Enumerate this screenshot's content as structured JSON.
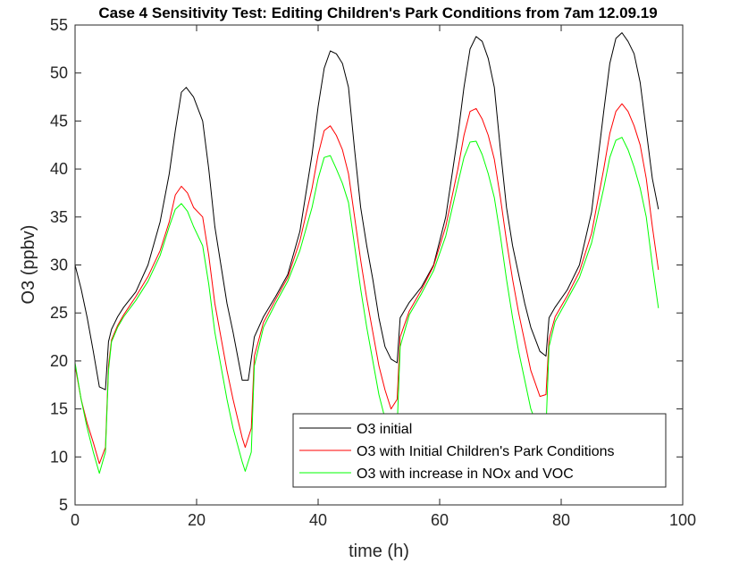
{
  "chart_data": {
    "type": "line",
    "title": "Case 4 Sensitivity Test: Editing Children's Park Conditions from 7am 12.09.19",
    "xlabel": "time (h)",
    "ylabel": "O3 (ppbv)",
    "xlim": [
      0,
      100
    ],
    "ylim": [
      5,
      55
    ],
    "xticks": [
      0,
      20,
      40,
      60,
      80,
      100
    ],
    "yticks": [
      5,
      10,
      15,
      20,
      25,
      30,
      35,
      40,
      45,
      50,
      55
    ],
    "grid": false,
    "legend_position": "bottom-right",
    "series": [
      {
        "name": "O3 initial",
        "color": "#000000",
        "points": [
          [
            0,
            30
          ],
          [
            1,
            27.5
          ],
          [
            2,
            24.5
          ],
          [
            3,
            21
          ],
          [
            4,
            17.3
          ],
          [
            5,
            17
          ],
          [
            5.5,
            22
          ],
          [
            6,
            23.3
          ],
          [
            7,
            24.6
          ],
          [
            8,
            25.6
          ],
          [
            10,
            27.2
          ],
          [
            12,
            30
          ],
          [
            14,
            34.5
          ],
          [
            15.5,
            39.5
          ],
          [
            16.5,
            44
          ],
          [
            17.5,
            48
          ],
          [
            18.3,
            48.5
          ],
          [
            19.5,
            47.5
          ],
          [
            21,
            45
          ],
          [
            22,
            40
          ],
          [
            23,
            34
          ],
          [
            24,
            30
          ],
          [
            25,
            26
          ],
          [
            26,
            23
          ],
          [
            27.5,
            18
          ],
          [
            28.5,
            18
          ],
          [
            29.5,
            22.5
          ],
          [
            31,
            24.6
          ],
          [
            33,
            26.7
          ],
          [
            35,
            29
          ],
          [
            37,
            33.5
          ],
          [
            39,
            41.5
          ],
          [
            40,
            46.5
          ],
          [
            41,
            50.5
          ],
          [
            42,
            52.3
          ],
          [
            43,
            52
          ],
          [
            44,
            51
          ],
          [
            45,
            48.5
          ],
          [
            46,
            42
          ],
          [
            47,
            36
          ],
          [
            48,
            32
          ],
          [
            49,
            28.5
          ],
          [
            50,
            24.5
          ],
          [
            51,
            21.5
          ],
          [
            52,
            20.2
          ],
          [
            53,
            19.8
          ],
          [
            53.5,
            24.5
          ],
          [
            55,
            26.1
          ],
          [
            57,
            27.7
          ],
          [
            59,
            30
          ],
          [
            61,
            35
          ],
          [
            63,
            43.5
          ],
          [
            64,
            48.5
          ],
          [
            65,
            52.5
          ],
          [
            66,
            53.8
          ],
          [
            67,
            53.3
          ],
          [
            68,
            51.5
          ],
          [
            69,
            48.5
          ],
          [
            70,
            42
          ],
          [
            71,
            36
          ],
          [
            72,
            32
          ],
          [
            73,
            29
          ],
          [
            74,
            26
          ],
          [
            75,
            23.5
          ],
          [
            76.5,
            21
          ],
          [
            77.5,
            20.5
          ],
          [
            78,
            24.5
          ],
          [
            79,
            25.6
          ],
          [
            81,
            27.4
          ],
          [
            83,
            30
          ],
          [
            85,
            35.5
          ],
          [
            87,
            46
          ],
          [
            88,
            51
          ],
          [
            89,
            53.6
          ],
          [
            90,
            54.2
          ],
          [
            91,
            53.3
          ],
          [
            92,
            52
          ],
          [
            93,
            49
          ],
          [
            94,
            44
          ],
          [
            95,
            39
          ],
          [
            96,
            35.8
          ]
        ]
      },
      {
        "name": "O3 with Initial Children's Park Conditions",
        "color": "#ff0000",
        "points": [
          [
            0,
            19.5
          ],
          [
            1,
            16
          ],
          [
            2,
            13.5
          ],
          [
            3,
            11.5
          ],
          [
            4,
            9.3
          ],
          [
            5,
            11
          ],
          [
            5.5,
            19.5
          ],
          [
            6,
            22.2
          ],
          [
            7,
            23.7
          ],
          [
            8,
            24.8
          ],
          [
            10,
            26.7
          ],
          [
            12,
            28.8
          ],
          [
            14,
            31.5
          ],
          [
            15.5,
            34.5
          ],
          [
            16.5,
            37.3
          ],
          [
            17.5,
            38.2
          ],
          [
            18.5,
            37.5
          ],
          [
            19.5,
            36
          ],
          [
            21,
            35
          ],
          [
            22,
            31
          ],
          [
            23,
            26
          ],
          [
            24,
            22.5
          ],
          [
            25,
            19
          ],
          [
            26,
            16
          ],
          [
            27.5,
            12
          ],
          [
            28,
            11
          ],
          [
            29,
            13
          ],
          [
            29.5,
            20.5
          ],
          [
            31,
            24
          ],
          [
            33,
            26.4
          ],
          [
            35,
            28.7
          ],
          [
            37,
            32.5
          ],
          [
            39,
            38
          ],
          [
            40,
            41.5
          ],
          [
            41,
            44
          ],
          [
            42,
            44.5
          ],
          [
            43,
            43.5
          ],
          [
            44,
            42
          ],
          [
            45,
            39.5
          ],
          [
            46,
            35
          ],
          [
            47,
            30.5
          ],
          [
            48,
            26.5
          ],
          [
            49,
            23
          ],
          [
            50,
            19.5
          ],
          [
            51,
            17
          ],
          [
            52,
            15
          ],
          [
            53,
            16
          ],
          [
            53.5,
            22.5
          ],
          [
            55,
            25.2
          ],
          [
            57,
            27.4
          ],
          [
            59,
            29.9
          ],
          [
            61,
            34
          ],
          [
            63,
            40
          ],
          [
            64,
            43.5
          ],
          [
            65,
            46
          ],
          [
            66,
            46.3
          ],
          [
            67,
            45.2
          ],
          [
            68,
            43.5
          ],
          [
            69,
            41
          ],
          [
            70,
            37
          ],
          [
            71,
            32.5
          ],
          [
            72,
            28.5
          ],
          [
            73,
            25
          ],
          [
            74,
            22
          ],
          [
            75,
            19
          ],
          [
            76.5,
            16.3
          ],
          [
            77.5,
            16.5
          ],
          [
            78,
            22.3
          ],
          [
            79,
            24.6
          ],
          [
            81,
            26.8
          ],
          [
            83,
            29.3
          ],
          [
            85,
            33.3
          ],
          [
            87,
            40
          ],
          [
            88,
            43.7
          ],
          [
            89,
            46
          ],
          [
            90,
            46.8
          ],
          [
            91,
            46
          ],
          [
            92,
            44.5
          ],
          [
            93,
            42.5
          ],
          [
            94,
            39
          ],
          [
            95,
            34
          ],
          [
            96,
            29.5
          ]
        ]
      },
      {
        "name": "O3 with increase in NOx and VOC",
        "color": "#00ff00",
        "points": [
          [
            0,
            19.8
          ],
          [
            1,
            16
          ],
          [
            2,
            13
          ],
          [
            3,
            10.5
          ],
          [
            4,
            8.3
          ],
          [
            5,
            10.5
          ],
          [
            5.5,
            19
          ],
          [
            6,
            22
          ],
          [
            7,
            23.5
          ],
          [
            8,
            24.6
          ],
          [
            10,
            26.3
          ],
          [
            12,
            28.3
          ],
          [
            14,
            31
          ],
          [
            15.5,
            34
          ],
          [
            16.5,
            35.8
          ],
          [
            17.5,
            36.4
          ],
          [
            18.5,
            35.6
          ],
          [
            19.5,
            34
          ],
          [
            21,
            32
          ],
          [
            22,
            28
          ],
          [
            23,
            23
          ],
          [
            24,
            19.5
          ],
          [
            25,
            16
          ],
          [
            26,
            13
          ],
          [
            27.5,
            9.5
          ],
          [
            28,
            8.5
          ],
          [
            29,
            10.5
          ],
          [
            29.5,
            19.5
          ],
          [
            31,
            23.5
          ],
          [
            33,
            26
          ],
          [
            35,
            28.3
          ],
          [
            37,
            31.5
          ],
          [
            39,
            36
          ],
          [
            40,
            39
          ],
          [
            41,
            41.2
          ],
          [
            42,
            41.4
          ],
          [
            43,
            40
          ],
          [
            44,
            38.5
          ],
          [
            45,
            36.5
          ],
          [
            46,
            32
          ],
          [
            47,
            27.5
          ],
          [
            48,
            23.5
          ],
          [
            49,
            20
          ],
          [
            50,
            16.5
          ],
          [
            51,
            14
          ],
          [
            52,
            12
          ],
          [
            53,
            13
          ],
          [
            53.5,
            21.5
          ],
          [
            55,
            24.8
          ],
          [
            57,
            27
          ],
          [
            59,
            29.4
          ],
          [
            61,
            33
          ],
          [
            63,
            38.5
          ],
          [
            64,
            41.2
          ],
          [
            65,
            42.8
          ],
          [
            66,
            42.9
          ],
          [
            67,
            41.5
          ],
          [
            68,
            39.5
          ],
          [
            69,
            37
          ],
          [
            70,
            33
          ],
          [
            71,
            28.5
          ],
          [
            72,
            24.5
          ],
          [
            73,
            21
          ],
          [
            74,
            18
          ],
          [
            75,
            15
          ],
          [
            76.5,
            12.5
          ],
          [
            77.5,
            13
          ],
          [
            78,
            21.5
          ],
          [
            79,
            24.1
          ],
          [
            81,
            26.4
          ],
          [
            83,
            28.7
          ],
          [
            85,
            32.3
          ],
          [
            87,
            38
          ],
          [
            88,
            41.2
          ],
          [
            89,
            43
          ],
          [
            90,
            43.3
          ],
          [
            91,
            42
          ],
          [
            92,
            40.2
          ],
          [
            93,
            38
          ],
          [
            94,
            35
          ],
          [
            95,
            30
          ],
          [
            96,
            25.5
          ]
        ]
      }
    ]
  }
}
